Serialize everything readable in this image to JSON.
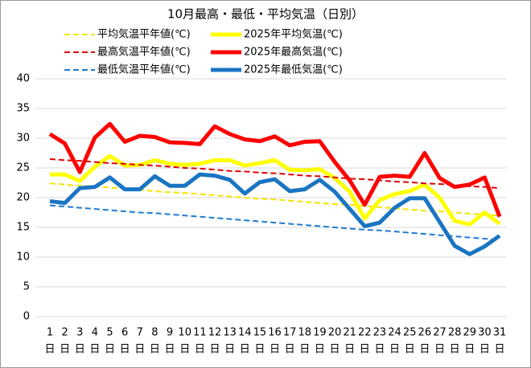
{
  "chart_data": {
    "type": "line",
    "title": "10月最高・最低・平均気温（日別）",
    "categories": [
      "1",
      "2",
      "3",
      "4",
      "5",
      "6",
      "7",
      "8",
      "9",
      "10",
      "11",
      "12",
      "13",
      "14",
      "15",
      "16",
      "17",
      "18",
      "19",
      "20",
      "21",
      "22",
      "23",
      "24",
      "25",
      "26",
      "27",
      "28",
      "29",
      "30",
      "31"
    ],
    "x_unit": "日",
    "ylim": [
      0,
      40
    ],
    "yticks": [
      0,
      5,
      10,
      15,
      20,
      25,
      30,
      35,
      40
    ],
    "grid": true,
    "series": [
      {
        "name": "平均気温平年値(℃)",
        "color": "#f5e400",
        "dashed": true,
        "values": [
          22.4,
          22.2,
          22.0,
          21.9,
          21.7,
          21.5,
          21.3,
          21.1,
          20.9,
          20.8,
          20.6,
          20.4,
          20.2,
          20.0,
          19.8,
          19.7,
          19.5,
          19.3,
          19.1,
          18.9,
          18.8,
          18.6,
          18.4,
          18.2,
          18.0,
          17.8,
          17.7,
          17.5,
          17.3,
          17.1,
          17.0
        ]
      },
      {
        "name": "2025年平均気温(℃)",
        "color": "#ffff00",
        "dashed": false,
        "values": [
          23.9,
          23.9,
          22.8,
          25.2,
          27.0,
          25.4,
          25.5,
          26.3,
          25.7,
          25.5,
          25.7,
          26.3,
          26.3,
          25.4,
          25.8,
          26.3,
          24.7,
          24.6,
          24.8,
          23.3,
          21.0,
          16.5,
          19.6,
          20.6,
          21.1,
          22.2,
          20.0,
          16.1,
          15.5,
          17.5,
          15.6
        ]
      },
      {
        "name": "最高気温平年値(℃)",
        "color": "#e00000",
        "dashed": true,
        "values": [
          26.5,
          26.3,
          26.2,
          26.0,
          25.8,
          25.7,
          25.5,
          25.4,
          25.2,
          25.0,
          24.9,
          24.7,
          24.5,
          24.4,
          24.2,
          24.1,
          23.9,
          23.7,
          23.6,
          23.4,
          23.2,
          23.1,
          22.9,
          22.7,
          22.6,
          22.4,
          22.3,
          22.1,
          21.9,
          21.8,
          21.6
        ]
      },
      {
        "name": "2025年最高気温(℃)",
        "color": "#ff0000",
        "dashed": false,
        "values": [
          30.7,
          29.1,
          24.3,
          30.1,
          32.4,
          29.4,
          30.4,
          30.2,
          29.3,
          29.2,
          29.0,
          32.0,
          30.7,
          29.8,
          29.5,
          30.3,
          28.8,
          29.4,
          29.5,
          26.0,
          22.9,
          18.8,
          23.5,
          23.7,
          23.5,
          27.5,
          23.3,
          21.8,
          22.2,
          23.4,
          16.8
        ]
      },
      {
        "name": "最低気温平年値(℃)",
        "color": "#1e7bd0",
        "dashed": true,
        "values": [
          18.7,
          18.5,
          18.3,
          18.1,
          17.9,
          17.7,
          17.5,
          17.4,
          17.2,
          17.0,
          16.8,
          16.6,
          16.4,
          16.2,
          16.0,
          15.8,
          15.6,
          15.4,
          15.2,
          15.0,
          14.8,
          14.6,
          14.5,
          14.3,
          14.1,
          13.9,
          13.7,
          13.5,
          13.3,
          13.1,
          12.9
        ]
      },
      {
        "name": "2025年最低気温(℃)",
        "color": "#1a75c2",
        "dashed": false,
        "values": [
          19.4,
          19.1,
          21.6,
          21.8,
          23.4,
          21.4,
          21.4,
          23.6,
          22.0,
          22.0,
          23.9,
          23.7,
          23.0,
          20.7,
          22.6,
          23.1,
          21.1,
          21.4,
          23.0,
          21.0,
          18.1,
          15.2,
          15.8,
          18.3,
          19.9,
          19.9,
          15.9,
          11.9,
          10.5,
          11.8,
          13.6
        ]
      }
    ]
  }
}
